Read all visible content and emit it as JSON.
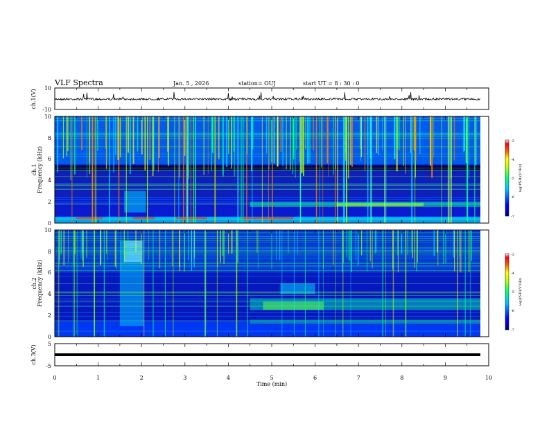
{
  "header": {
    "title": "VLF Spectra",
    "date": "Jan. 5 , 2026",
    "station": "station= OUJ",
    "start": "start UT = 8 : 30 : 0"
  },
  "colors": {
    "spectrogram_scale": [
      "#000080",
      "#0000ff",
      "#00a0ff",
      "#00ffff",
      "#00ff60",
      "#a0ff00",
      "#ffff00",
      "#ff8000",
      "#ff0000",
      "#ffffff"
    ],
    "trace": "#000000"
  },
  "chart_data": [
    {
      "type": "line",
      "id": "ch1-waveform",
      "ylabel": "ch.1(V)",
      "ylim": [
        -10,
        10
      ],
      "yticks": [
        "10",
        "-10"
      ],
      "x_range_min": [
        0,
        9.83
      ],
      "baseline": -1,
      "note": "noisy waveform trace"
    },
    {
      "type": "heatmap",
      "id": "ch1-spectrogram",
      "ylabel_channel": "ch.1",
      "ylabel": "Frequency (kHz)",
      "ylim": [
        0,
        10
      ],
      "yticks": [
        "0",
        "2",
        "4",
        "6",
        "8",
        "10"
      ],
      "x_range_min": [
        0,
        9.83
      ],
      "colorbar": {
        "label": "log(PSD)(V²/Hz)",
        "range": [
          -7,
          -3
        ],
        "ticks": [
          "-3",
          "-4",
          "-5",
          "-6",
          "-7"
        ]
      },
      "features": [
        {
          "desc": "broadband sferics",
          "freq_khz": [
            5.5,
            10
          ],
          "level": -4
        },
        {
          "desc": "dark band",
          "freq_khz": [
            4.9,
            5.4
          ],
          "level": -7
        },
        {
          "desc": "strong low band",
          "freq_khz": [
            0.3,
            0.6
          ],
          "level": -3.3
        },
        {
          "desc": "chorus band after 4.5 min",
          "time_min": [
            4.5,
            9.8
          ],
          "freq_khz": [
            1.5,
            2.0
          ],
          "level": -4.8
        }
      ]
    },
    {
      "type": "heatmap",
      "id": "ch2-spectrogram",
      "ylabel_channel": "ch.2",
      "ylabel": "Frequency (kHz)",
      "ylim": [
        0,
        10
      ],
      "yticks": [
        "0",
        "2",
        "4",
        "6",
        "8",
        "10"
      ],
      "x_range_min": [
        0,
        9.83
      ],
      "colorbar": {
        "label": "log(PSD)(V²/Hz)",
        "range": [
          -7,
          -3
        ],
        "ticks": [
          "-3",
          "-4",
          "-5",
          "-6",
          "-7"
        ]
      },
      "features": [
        {
          "desc": "emission burst",
          "time_min": [
            1.5,
            2.0
          ],
          "freq_khz": [
            1,
            9
          ],
          "level": -5
        },
        {
          "desc": "hiss band after 4.5 min",
          "time_min": [
            4.5,
            9.8
          ],
          "freq_khz": [
            2.5,
            3.5
          ],
          "level": -5
        },
        {
          "desc": "hiss patch",
          "time_min": [
            5.2,
            6.0
          ],
          "freq_khz": [
            4,
            5
          ],
          "level": -5
        }
      ]
    },
    {
      "type": "line",
      "id": "ch3-waveform",
      "ylabel": "ch.3(V)",
      "ylim": [
        -5,
        5
      ],
      "yticks": [
        "5",
        "-5"
      ],
      "x_range_min": [
        0,
        9.83
      ],
      "baseline": -1,
      "note": "flat thick trace"
    }
  ],
  "x_axis": {
    "label": "Time (min)",
    "ticks": [
      "0",
      "1",
      "2",
      "3",
      "4",
      "5",
      "6",
      "7",
      "8",
      "9",
      "10"
    ],
    "range": [
      0,
      10
    ]
  }
}
